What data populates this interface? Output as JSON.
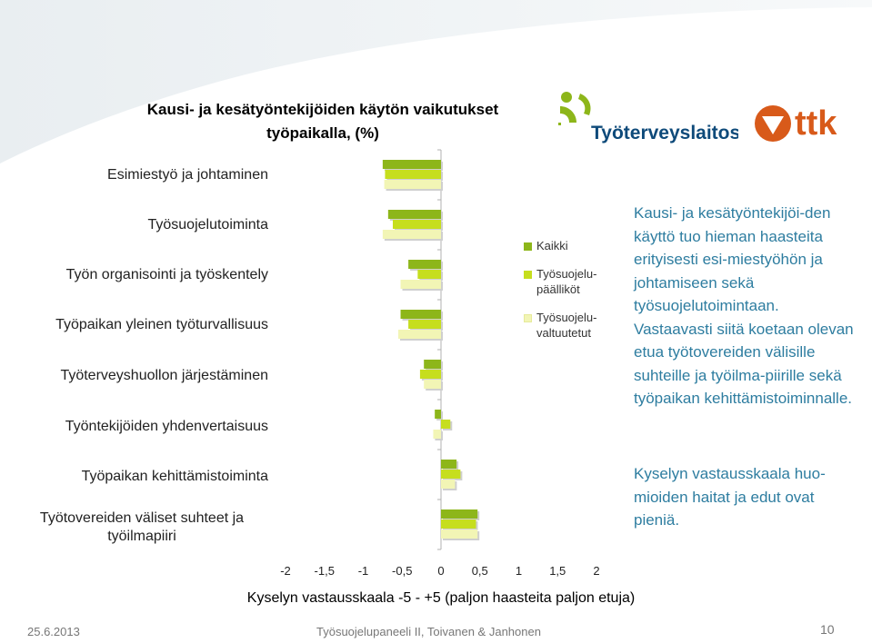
{
  "header": {
    "title_line1": "Kausi- ja kesätyöntekijöiden käytön vaikutukset",
    "title_line2": "työpaikalla, (%)"
  },
  "logos": {
    "tyoterveyslaitos": "Työterveyslaitos",
    "ttk": "ttk"
  },
  "chart_data": {
    "type": "bar",
    "orientation": "horizontal",
    "title": "Kausi- ja kesätyöntekijöiden käytön vaikutukset työpaikalla, (%)",
    "categories": [
      "Esimiestyö ja johtaminen",
      "Työsuojelutoiminta",
      "Työn organisointi ja työskentely",
      "Työpaikan yleinen työturvallisuus",
      "Työterveyshuollon järjestäminen",
      "Työntekijöiden yhdenvertaisuus",
      "Työpaikan kehittämistoiminta",
      "Työtovereiden väliset suhteet ja työilmapiiri"
    ],
    "series": [
      {
        "name": "Kaikki",
        "color": "#8db61a",
        "values": [
          -0.75,
          -0.68,
          -0.42,
          -0.52,
          -0.22,
          -0.08,
          0.2,
          0.47
        ]
      },
      {
        "name": "Työsuojelu-päälliköt",
        "color": "#c6de1e",
        "values": [
          -0.72,
          -0.62,
          -0.3,
          -0.42,
          -0.27,
          0.12,
          0.25,
          0.45
        ]
      },
      {
        "name": "Työsuojelu-valtuutetut",
        "color": "#f2f5b5",
        "values": [
          -0.73,
          -0.75,
          -0.52,
          -0.55,
          -0.22,
          -0.1,
          0.18,
          0.47
        ]
      }
    ],
    "x_ticks": [
      "-2",
      "-1,5",
      "-1",
      "-0,5",
      "0",
      "0,5",
      "1",
      "1,5",
      "2"
    ],
    "xlim": [
      -2,
      2
    ],
    "xlabel": "Kyselyn vastausskaala -5 - +5 (paljon haasteita paljon etuja)",
    "grid": false,
    "legend_position": "right"
  },
  "legend": {
    "items": [
      {
        "line1": "Kaikki",
        "line2": "",
        "color": "#8db61a"
      },
      {
        "line1": "Työsuojelu-",
        "line2": "päälliköt",
        "color": "#c6de1e"
      },
      {
        "line1": "Työsuojelu-",
        "line2": "valtuutetut",
        "color": "#f2f5b5"
      }
    ]
  },
  "right_text": {
    "para1": "Kausi- ja kesätyöntekijöi-den käyttö tuo hieman haasteita erityisesti esi-miestyöhön ja johtamiseen sekä työsuojelutoimintaan. Vastaavasti siitä koetaan olevan etua työtovereiden välisille suhteille ja työilma-piirille sekä työpaikan kehittämistoiminnalle.",
    "para2": "Kyselyn vastausskaala huo-mioiden haitat ja edut ovat pieniä."
  },
  "footer": {
    "date": "25.6.2013",
    "center": "Työsuojelupaneeli II, Toivanen & Janhonen",
    "page": "10"
  }
}
